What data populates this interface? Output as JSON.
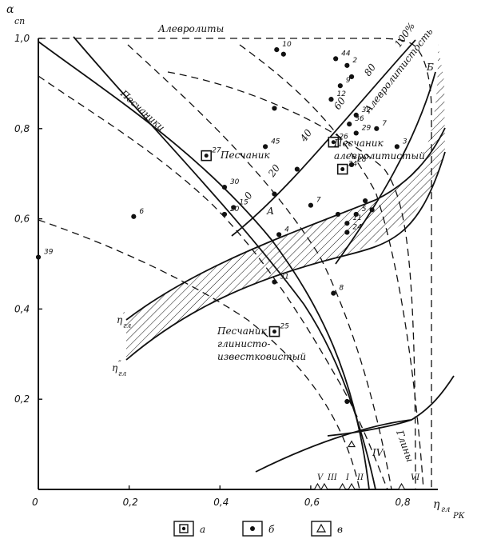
{
  "chart_data": {
    "type": "scatter",
    "xlabel": "η",
    "xlabel_sub": "гл",
    "xlabel_sub2": "РК",
    "ylabel": "α",
    "ylabel_sub": "сп",
    "xlim": [
      0,
      0.88
    ],
    "ylim": [
      0,
      1.0
    ],
    "x_ticks": [
      "0",
      "0,2",
      "0,4",
      "0,6",
      "0,8"
    ],
    "x_tick_values": [
      0,
      0.2,
      0.4,
      0.6,
      0.8
    ],
    "y_ticks": [
      "0,2",
      "0,4",
      "0,6",
      "0,8",
      "1,0"
    ],
    "y_tick_values": [
      0.2,
      0.4,
      0.6,
      0.8,
      1.0
    ],
    "region_labels": {
      "aleurolity_top": "Алевролиты",
      "peschaniki": "Песчаники",
      "aleurolitistost": "Алевролитистость",
      "glinistost_b": "Б",
      "glinistost_a": "А",
      "gliny": "Глины",
      "sandstone": "Песчаник",
      "sandstone_aleur_1": "Песчаник",
      "sandstone_aleur_2": "алевролитистый",
      "sandstone_clay_1": "Песчаник",
      "sandstone_clay_2": "глинисто-",
      "sandstone_clay_3": "известковистый",
      "eta1_main": "η",
      "eta1_sub": "гл",
      "eta1_prime": "′",
      "eta2_main": "η",
      "eta2_sub": "гл",
      "eta2_prime": "″",
      "pct_100": "100%",
      "pct_80": "80",
      "pct_60": "60",
      "pct_40": "40",
      "pct_20": "20",
      "pct_0": "0",
      "roman_IV": "IV",
      "roman_V": "V",
      "roman_III": "III",
      "roman_I": "I",
      "roman_II": "II",
      "roman_VI": "VI"
    },
    "series": [
      {
        "name": "а",
        "marker": "square-dot",
        "points": [
          {
            "x": 0.37,
            "y": 0.74,
            "label": "27"
          },
          {
            "x": 0.65,
            "y": 0.77,
            "label": "26"
          },
          {
            "x": 0.67,
            "y": 0.71,
            "label": "34"
          },
          {
            "x": 0.52,
            "y": 0.35,
            "label": "25"
          }
        ]
      },
      {
        "name": "б",
        "marker": "dot",
        "points": [
          {
            "x": 0.525,
            "y": 0.975,
            "label": "10"
          },
          {
            "x": 0.54,
            "y": 0.965,
            "label": ""
          },
          {
            "x": 0.655,
            "y": 0.955,
            "label": "44"
          },
          {
            "x": 0.68,
            "y": 0.94,
            "label": "2"
          },
          {
            "x": 0.69,
            "y": 0.915,
            "label": ""
          },
          {
            "x": 0.665,
            "y": 0.895,
            "label": "9"
          },
          {
            "x": 0.645,
            "y": 0.865,
            "label": "12"
          },
          {
            "x": 0.52,
            "y": 0.845,
            "label": ""
          },
          {
            "x": 0.7,
            "y": 0.83,
            "label": "32"
          },
          {
            "x": 0.685,
            "y": 0.81,
            "label": "36"
          },
          {
            "x": 0.7,
            "y": 0.79,
            "label": "29"
          },
          {
            "x": 0.745,
            "y": 0.8,
            "label": "7"
          },
          {
            "x": 0.79,
            "y": 0.76,
            "label": "3"
          },
          {
            "x": 0.69,
            "y": 0.72,
            "label": "28"
          },
          {
            "x": 0.5,
            "y": 0.76,
            "label": "45"
          },
          {
            "x": 0.57,
            "y": 0.71,
            "label": ""
          },
          {
            "x": 0.41,
            "y": 0.67,
            "label": "30"
          },
          {
            "x": 0.52,
            "y": 0.655,
            "label": ""
          },
          {
            "x": 0.41,
            "y": 0.61,
            "label": "20"
          },
          {
            "x": 0.43,
            "y": 0.625,
            "label": "15"
          },
          {
            "x": 0.6,
            "y": 0.63,
            "label": "7"
          },
          {
            "x": 0.66,
            "y": 0.61,
            "label": ""
          },
          {
            "x": 0.68,
            "y": 0.59,
            "label": "11"
          },
          {
            "x": 0.7,
            "y": 0.61,
            "label": "5"
          },
          {
            "x": 0.72,
            "y": 0.64,
            "label": ""
          },
          {
            "x": 0.735,
            "y": 0.62,
            "label": ""
          },
          {
            "x": 0.68,
            "y": 0.57,
            "label": "24"
          },
          {
            "x": 0.53,
            "y": 0.565,
            "label": "4"
          },
          {
            "x": 0.21,
            "y": 0.605,
            "label": "6"
          },
          {
            "x": 0.0,
            "y": 0.515,
            "label": "39"
          },
          {
            "x": 0.52,
            "y": 0.46,
            "label": "31"
          },
          {
            "x": 0.65,
            "y": 0.435,
            "label": "8"
          },
          {
            "x": 0.68,
            "y": 0.195,
            "label": ""
          }
        ]
      },
      {
        "name": "в",
        "marker": "triangle",
        "points": [
          {
            "x": 0.615,
            "y": 0.0,
            "label": ""
          },
          {
            "x": 0.63,
            "y": 0.0,
            "label": ""
          },
          {
            "x": 0.67,
            "y": 0.0,
            "label": ""
          },
          {
            "x": 0.69,
            "y": 0.0,
            "label": ""
          },
          {
            "x": 0.8,
            "y": 0.0,
            "label": ""
          },
          {
            "x": 0.69,
            "y": 0.1,
            "label": ""
          }
        ]
      }
    ],
    "legend": {
      "position": "bottom",
      "items": [
        "а",
        "б",
        "в"
      ]
    }
  }
}
